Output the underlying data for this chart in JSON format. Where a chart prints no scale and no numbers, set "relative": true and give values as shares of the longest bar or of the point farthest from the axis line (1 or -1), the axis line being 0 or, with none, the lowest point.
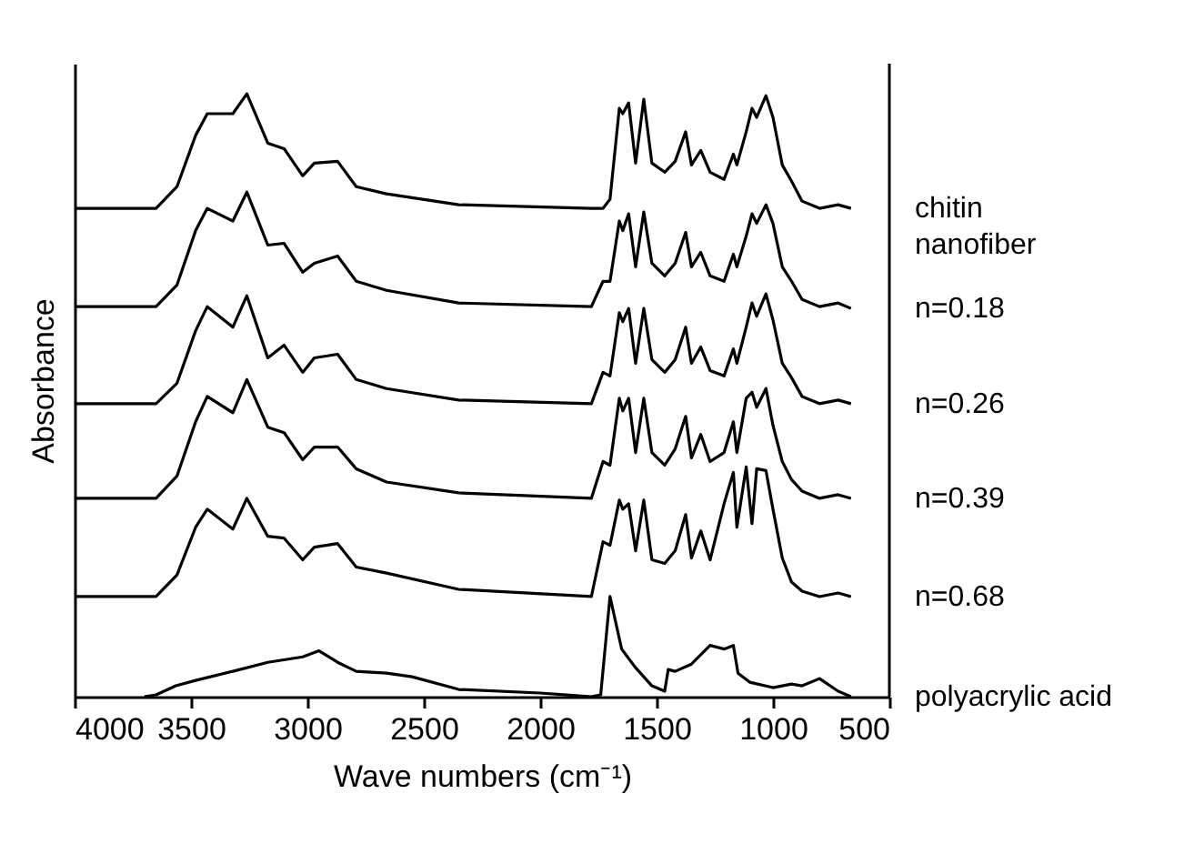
{
  "chart_data": {
    "type": "line",
    "relative": true,
    "xlabel": "Wave numbers (cm⁻¹)",
    "ylabel": "Absorbance",
    "xlim": [
      4000,
      500
    ],
    "xticks": [
      4000,
      3500,
      3000,
      2500,
      2000,
      1500,
      1000,
      500
    ],
    "x": [
      4000,
      3650,
      3560,
      3480,
      3430,
      3320,
      3260,
      3170,
      3100,
      3020,
      2970,
      2870,
      2790,
      2660,
      2350,
      1780,
      1730,
      1700,
      1660,
      1645,
      1620,
      1590,
      1555,
      1520,
      1465,
      1420,
      1375,
      1350,
      1310,
      1270,
      1210,
      1170,
      1155,
      1115,
      1090,
      1070,
      1030,
      1000,
      960,
      920,
      875,
      800,
      720,
      665
    ],
    "series": [
      {
        "name": "chitin\nnanofiber",
        "color": "#000000",
        "values": [
          0.81,
          0.81,
          0.846,
          0.931,
          0.967,
          0.967,
          1.0,
          0.918,
          0.909,
          0.864,
          0.885,
          0.888,
          0.846,
          0.834,
          0.816,
          0.81,
          0.81,
          0.825,
          0.976,
          0.967,
          0.985,
          0.885,
          0.991,
          0.885,
          0.87,
          0.888,
          0.937,
          0.882,
          0.906,
          0.87,
          0.858,
          0.9,
          0.882,
          0.937,
          0.976,
          0.961,
          0.997,
          0.961,
          0.882,
          0.855,
          0.822,
          0.81,
          0.816,
          0.81
        ]
      },
      {
        "name": "n=0.18",
        "color": "#000000",
        "values": [
          0.647,
          0.647,
          0.683,
          0.773,
          0.81,
          0.789,
          0.837,
          0.749,
          0.752,
          0.704,
          0.719,
          0.731,
          0.689,
          0.674,
          0.653,
          0.647,
          0.689,
          0.689,
          0.789,
          0.773,
          0.801,
          0.713,
          0.804,
          0.719,
          0.698,
          0.719,
          0.77,
          0.713,
          0.737,
          0.698,
          0.689,
          0.734,
          0.713,
          0.764,
          0.801,
          0.785,
          0.816,
          0.785,
          0.713,
          0.689,
          0.659,
          0.647,
          0.653,
          0.644
        ]
      },
      {
        "name": "n=0.26",
        "color": "#000000",
        "values": [
          0.486,
          0.486,
          0.52,
          0.607,
          0.647,
          0.613,
          0.665,
          0.562,
          0.583,
          0.538,
          0.562,
          0.568,
          0.526,
          0.511,
          0.492,
          0.486,
          0.538,
          0.532,
          0.637,
          0.622,
          0.644,
          0.553,
          0.644,
          0.559,
          0.538,
          0.559,
          0.613,
          0.553,
          0.58,
          0.541,
          0.532,
          0.577,
          0.553,
          0.613,
          0.653,
          0.631,
          0.668,
          0.625,
          0.553,
          0.529,
          0.498,
          0.486,
          0.492,
          0.486
        ]
      },
      {
        "name": "n=0.39",
        "color": "#000000",
        "values": [
          0.329,
          0.329,
          0.366,
          0.456,
          0.498,
          0.471,
          0.526,
          0.447,
          0.438,
          0.393,
          0.414,
          0.414,
          0.378,
          0.356,
          0.338,
          0.329,
          0.39,
          0.384,
          0.495,
          0.474,
          0.495,
          0.405,
          0.495,
          0.405,
          0.384,
          0.411,
          0.465,
          0.396,
          0.435,
          0.39,
          0.405,
          0.456,
          0.405,
          0.495,
          0.505,
          0.48,
          0.511,
          0.45,
          0.39,
          0.36,
          0.341,
          0.329,
          0.335,
          0.329
        ]
      },
      {
        "name": "n=0.68",
        "color": "#000000",
        "values": [
          0.166,
          0.166,
          0.202,
          0.281,
          0.311,
          0.278,
          0.329,
          0.266,
          0.263,
          0.227,
          0.248,
          0.254,
          0.215,
          0.205,
          0.178,
          0.166,
          0.257,
          0.251,
          0.326,
          0.311,
          0.32,
          0.242,
          0.326,
          0.227,
          0.221,
          0.242,
          0.302,
          0.23,
          0.275,
          0.227,
          0.32,
          0.372,
          0.281,
          0.381,
          0.287,
          0.378,
          0.375,
          0.311,
          0.23,
          0.19,
          0.175,
          0.166,
          0.172,
          0.166
        ]
      },
      {
        "name": "polyacrylic acid",
        "color": "#000000",
        "x": [
          3700,
          3650,
          3565,
          3480,
          3320,
          3170,
          3020,
          2950,
          2870,
          2790,
          2660,
          2550,
          2350,
          2000,
          1780,
          1740,
          1700,
          1650,
          1590,
          1520,
          1465,
          1450,
          1420,
          1350,
          1270,
          1210,
          1170,
          1150,
          1100,
          1000,
          920,
          875,
          800,
          720,
          665
        ],
        "values": [
          0,
          0.003,
          0.018,
          0.027,
          0.042,
          0.057,
          0.066,
          0.076,
          0.057,
          0.042,
          0.039,
          0.033,
          0.012,
          0.006,
          0,
          0.003,
          0.166,
          0.079,
          0.048,
          0.018,
          0.009,
          0.045,
          0.042,
          0.054,
          0.085,
          0.079,
          0.085,
          0.039,
          0.024,
          0.015,
          0.021,
          0.018,
          0.03,
          0.009,
          0
        ]
      }
    ]
  }
}
